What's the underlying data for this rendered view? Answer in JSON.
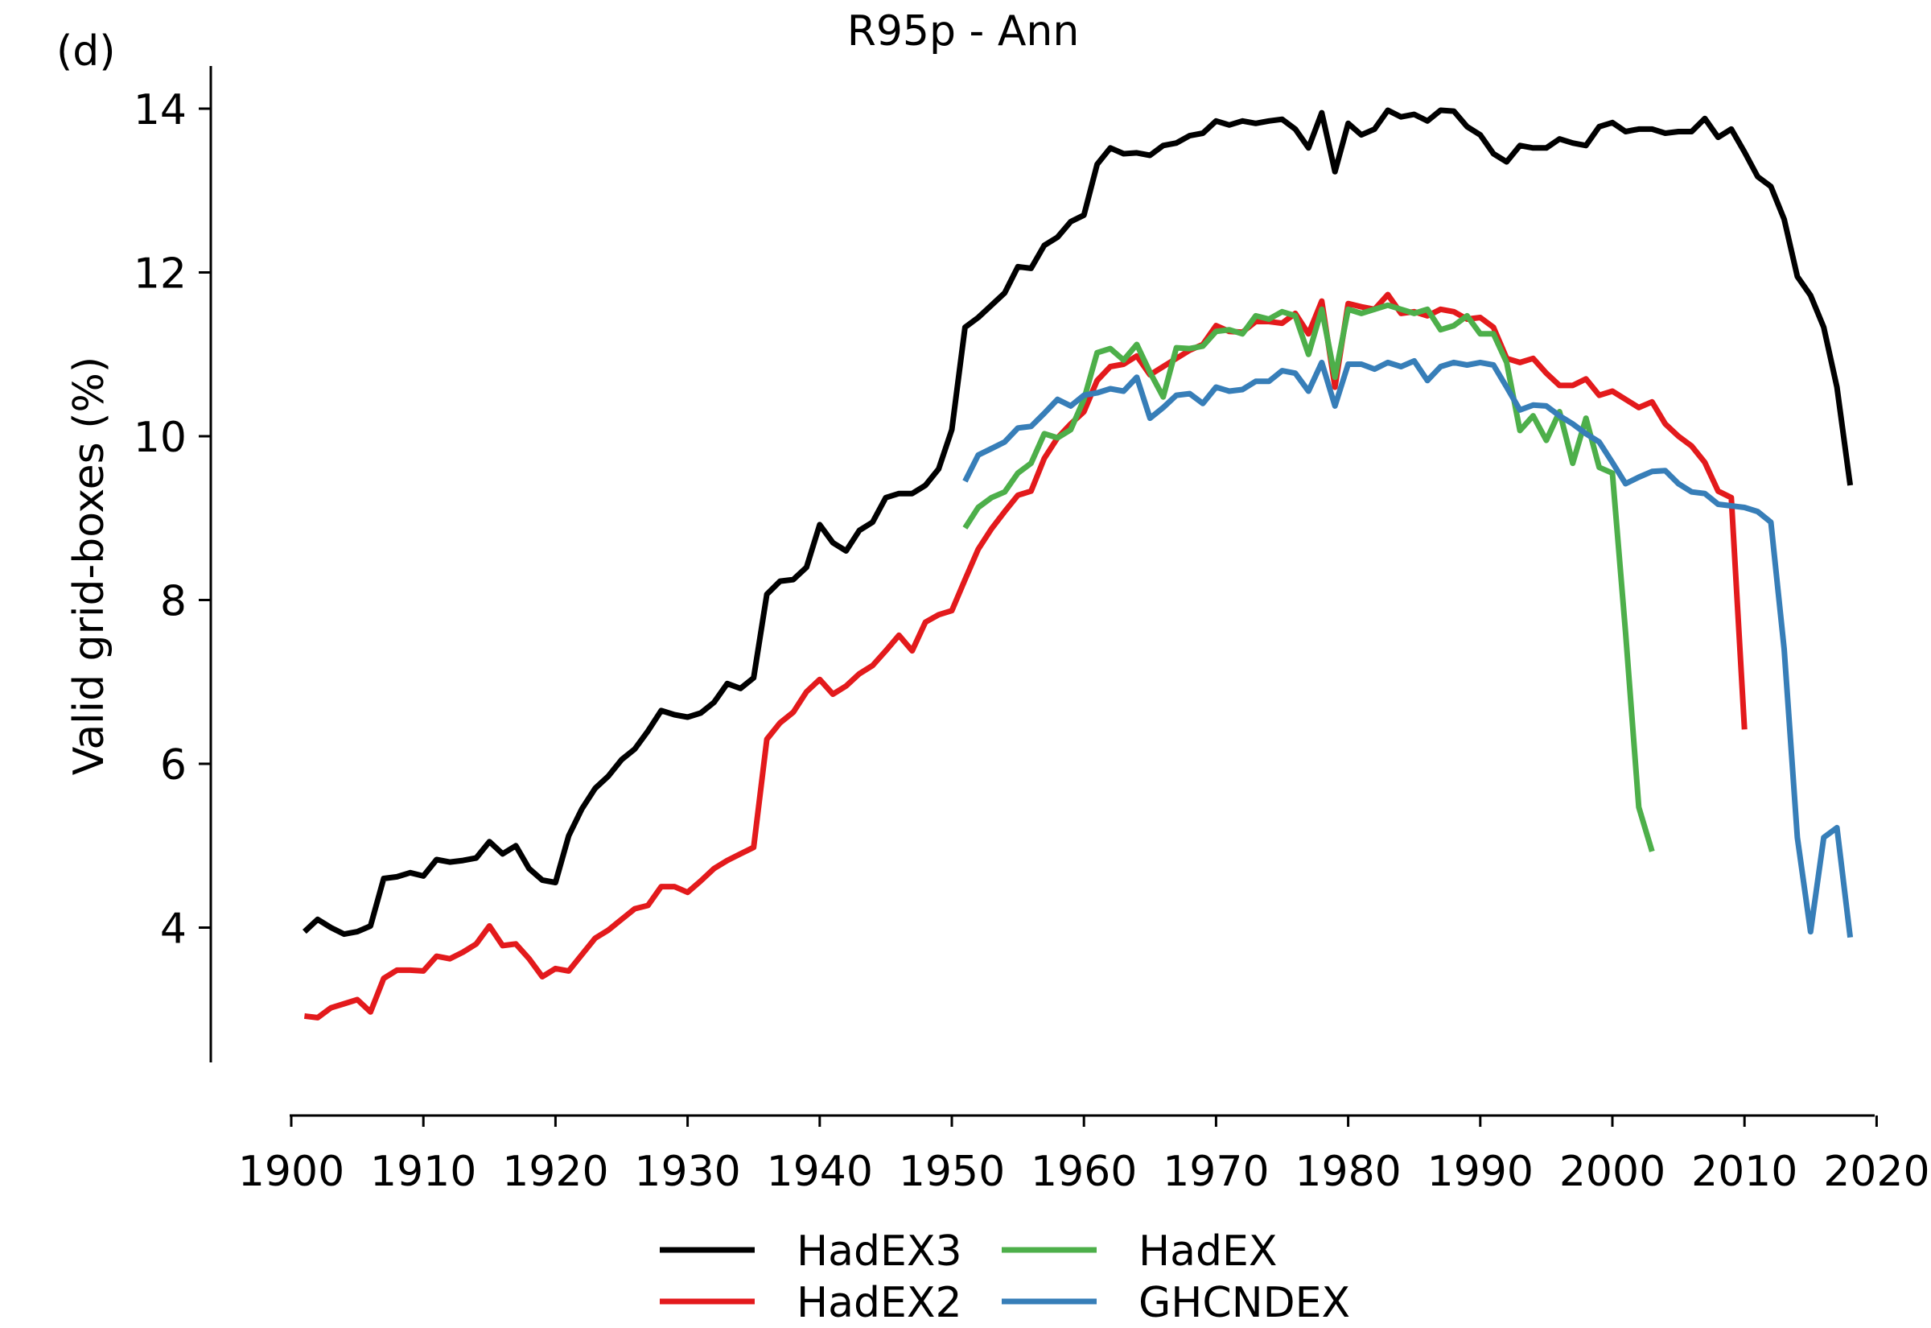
{
  "panel_label": "(d)",
  "chart_data": {
    "type": "line",
    "title": "R95p - Ann",
    "xlabel": "",
    "ylabel": "Valid grid-boxes (%)",
    "xlim": [
      1899,
      2020
    ],
    "ylim": [
      2.4,
      14.6
    ],
    "xticks": [
      1900,
      1910,
      1920,
      1930,
      1940,
      1950,
      1960,
      1970,
      1980,
      1990,
      2000,
      2010,
      2020
    ],
    "yticks": [
      4,
      6,
      8,
      10,
      12,
      14
    ],
    "grid": false,
    "legend_position": "bottom-center",
    "series": [
      {
        "name": "HadEX3",
        "color": "#000000",
        "x_start": 1901,
        "values": [
          3.95,
          4.1,
          4.0,
          3.92,
          3.95,
          4.02,
          4.6,
          4.62,
          4.67,
          4.63,
          4.83,
          4.8,
          4.82,
          4.85,
          5.05,
          4.9,
          5.0,
          4.72,
          4.58,
          4.55,
          5.12,
          5.45,
          5.7,
          5.85,
          6.05,
          6.18,
          6.4,
          6.65,
          6.6,
          6.57,
          6.62,
          6.75,
          6.98,
          6.92,
          7.05,
          8.07,
          8.23,
          8.25,
          8.4,
          8.92,
          8.7,
          8.6,
          8.85,
          8.95,
          9.25,
          9.3,
          9.3,
          9.4,
          9.6,
          10.08,
          11.33,
          11.45,
          11.6,
          11.75,
          12.07,
          12.05,
          12.33,
          12.43,
          12.62,
          12.7,
          13.32,
          13.52,
          13.45,
          13.46,
          13.43,
          13.55,
          13.58,
          13.67,
          13.7,
          13.85,
          13.8,
          13.85,
          13.82,
          13.85,
          13.87,
          13.75,
          13.52,
          13.95,
          13.23,
          13.82,
          13.68,
          13.75,
          13.98,
          13.9,
          13.93,
          13.85,
          13.98,
          13.97,
          13.78,
          13.68,
          13.45,
          13.35,
          13.55,
          13.52,
          13.52,
          13.63,
          13.58,
          13.55,
          13.78,
          13.83,
          13.72,
          13.75,
          13.75,
          13.7,
          13.72,
          13.72,
          13.88,
          13.65,
          13.75,
          13.47,
          13.17,
          13.05,
          12.65,
          11.95,
          11.72,
          11.33,
          10.6,
          9.4
        ]
      },
      {
        "name": "HadEX2",
        "color": "#e31a1c",
        "x_start": 1901,
        "values": [
          2.92,
          2.9,
          3.02,
          3.07,
          3.12,
          2.97,
          3.38,
          3.48,
          3.48,
          3.47,
          3.65,
          3.62,
          3.7,
          3.8,
          4.02,
          3.78,
          3.8,
          3.62,
          3.4,
          3.5,
          3.47,
          3.67,
          3.87,
          3.97,
          4.1,
          4.23,
          4.27,
          4.5,
          4.5,
          4.43,
          4.57,
          4.72,
          4.82,
          4.9,
          4.98,
          6.3,
          6.5,
          6.63,
          6.88,
          7.03,
          6.85,
          6.95,
          7.1,
          7.2,
          7.38,
          7.57,
          7.38,
          7.73,
          7.82,
          7.87,
          8.25,
          8.62,
          8.87,
          9.08,
          9.28,
          9.33,
          9.73,
          9.98,
          10.15,
          10.3,
          10.68,
          10.85,
          10.88,
          10.98,
          10.75,
          10.85,
          10.95,
          11.05,
          11.12,
          11.35,
          11.28,
          11.27,
          11.4,
          11.4,
          11.38,
          11.5,
          11.25,
          11.65,
          10.6,
          11.62,
          11.58,
          11.55,
          11.73,
          11.5,
          11.52,
          11.47,
          11.55,
          11.52,
          11.43,
          11.45,
          11.33,
          10.95,
          10.9,
          10.95,
          10.77,
          10.62,
          10.62,
          10.7,
          10.5,
          10.55,
          10.45,
          10.35,
          10.42,
          10.15,
          10.0,
          9.88,
          9.68,
          9.33,
          9.25,
          6.42
        ]
      },
      {
        "name": "HadEX",
        "color": "#4daf4a",
        "x_start": 1951,
        "values": [
          8.88,
          9.13,
          9.25,
          9.32,
          9.55,
          9.67,
          10.03,
          9.98,
          10.08,
          10.45,
          11.02,
          11.07,
          10.93,
          11.12,
          10.78,
          10.48,
          11.08,
          11.07,
          11.1,
          11.28,
          11.3,
          11.25,
          11.47,
          11.43,
          11.52,
          11.47,
          11.0,
          11.55,
          10.72,
          11.55,
          11.5,
          11.55,
          11.6,
          11.55,
          11.5,
          11.55,
          11.3,
          11.35,
          11.47,
          11.25,
          11.25,
          10.9,
          10.07,
          10.25,
          9.95,
          10.3,
          9.67,
          10.22,
          9.62,
          9.55,
          7.6,
          5.47,
          4.93
        ]
      },
      {
        "name": "GHCNDEX",
        "color": "#377eb8",
        "x_start": 1951,
        "values": [
          9.45,
          9.77,
          9.85,
          9.93,
          10.1,
          10.12,
          10.28,
          10.45,
          10.37,
          10.5,
          10.53,
          10.58,
          10.55,
          10.72,
          10.22,
          10.35,
          10.5,
          10.52,
          10.4,
          10.6,
          10.55,
          10.57,
          10.67,
          10.67,
          10.8,
          10.77,
          10.55,
          10.9,
          10.37,
          10.88,
          10.88,
          10.82,
          10.9,
          10.85,
          10.92,
          10.68,
          10.85,
          10.9,
          10.87,
          10.9,
          10.87,
          10.6,
          10.32,
          10.38,
          10.37,
          10.25,
          10.15,
          10.03,
          9.93,
          9.68,
          9.42,
          9.5,
          9.57,
          9.58,
          9.42,
          9.32,
          9.3,
          9.17,
          9.15,
          9.13,
          9.08,
          8.95,
          7.4,
          5.1,
          3.95,
          5.1,
          5.22,
          3.88
        ]
      }
    ]
  }
}
